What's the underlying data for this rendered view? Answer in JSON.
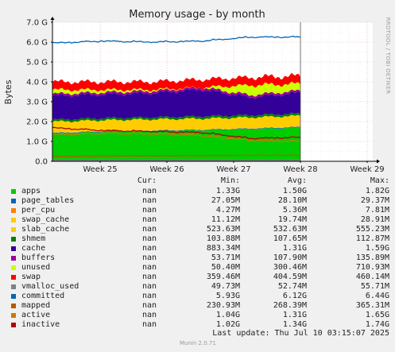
{
  "chart_data": {
    "type": "area",
    "title": "Memory usage - by month",
    "ylabel": "Bytes",
    "side_label": "RRDTOOL / TOBI OETIKER",
    "ylim": [
      0,
      7.0
    ],
    "y_unit": "G",
    "y_ticks": [
      "0.0",
      "1.0 G",
      "2.0 G",
      "3.0 G",
      "4.0 G",
      "5.0 G",
      "6.0 G",
      "7.0 G"
    ],
    "x_ticks": [
      "Week 25",
      "Week 26",
      "Week 27",
      "Week 28",
      "Week 29"
    ],
    "grid": true,
    "x": [
      "Week 24.4",
      "Week 25",
      "Week 26",
      "Week 27",
      "Week 27.5",
      "Week 28"
    ],
    "series": [
      {
        "name": "apps",
        "color": "#00cc00",
        "values": [
          1.4,
          1.48,
          1.52,
          1.56,
          1.62,
          1.7
        ]
      },
      {
        "name": "page_tables",
        "color": "#0066b3",
        "values": [
          0.03,
          0.03,
          0.03,
          0.03,
          0.03,
          0.03
        ]
      },
      {
        "name": "per_cpu",
        "color": "#ff8000",
        "values": [
          0.01,
          0.01,
          0.01,
          0.01,
          0.01,
          0.01
        ]
      },
      {
        "name": "swap_cache",
        "color": "#ffcc00",
        "values": [
          0.02,
          0.02,
          0.02,
          0.02,
          0.02,
          0.02
        ]
      },
      {
        "name": "slab_cache",
        "color": "#ffcc00",
        "values": [
          0.53,
          0.53,
          0.53,
          0.53,
          0.53,
          0.53
        ]
      },
      {
        "name": "shmem",
        "color": "#008000",
        "values": [
          0.1,
          0.1,
          0.1,
          0.11,
          0.11,
          0.11
        ]
      },
      {
        "name": "cache",
        "color": "#330099",
        "values": [
          1.2,
          1.2,
          1.22,
          1.35,
          0.9,
          1.05
        ]
      },
      {
        "name": "buffers",
        "color": "#990099",
        "values": [
          0.1,
          0.1,
          0.11,
          0.11,
          0.11,
          0.11
        ]
      },
      {
        "name": "unused",
        "color": "#ccff00",
        "values": [
          0.21,
          0.13,
          0.06,
          0.0,
          0.5,
          0.34
        ]
      },
      {
        "name": "swap",
        "color": "#ff0000",
        "values": [
          0.4,
          0.4,
          0.4,
          0.4,
          0.4,
          0.4
        ]
      }
    ],
    "line_series": [
      {
        "name": "committed",
        "color": "#0066b3",
        "values": [
          5.95,
          6.05,
          6.0,
          6.05,
          6.25,
          6.25
        ]
      },
      {
        "name": "active",
        "color": "#cc7a00",
        "values": [
          1.35,
          1.4,
          1.38,
          1.3,
          1.05,
          1.0
        ]
      },
      {
        "name": "inactive",
        "color": "#b30000",
        "values": [
          1.68,
          1.55,
          1.5,
          1.45,
          1.15,
          1.2
        ]
      },
      {
        "name": "vmalloc_used",
        "color": "#808080",
        "values": [
          0.05,
          0.05,
          0.05,
          0.05,
          0.05,
          0.05
        ]
      },
      {
        "name": "mapped",
        "color": "#b35a00",
        "values": [
          0.25,
          0.26,
          0.27,
          0.28,
          0.3,
          0.3
        ]
      }
    ]
  },
  "legend": {
    "headers": [
      "Cur:",
      "Min:",
      "Avg:",
      "Max:"
    ],
    "rows": [
      {
        "name": "apps",
        "color": "#00cc00",
        "cur": "nan",
        "min": "1.33G",
        "avg": "1.50G",
        "max": "1.82G"
      },
      {
        "name": "page_tables",
        "color": "#0066b3",
        "cur": "nan",
        "min": "27.05M",
        "avg": "28.10M",
        "max": "29.37M"
      },
      {
        "name": "per_cpu",
        "color": "#ff8000",
        "cur": "nan",
        "min": "4.27M",
        "avg": "5.36M",
        "max": "7.81M"
      },
      {
        "name": "swap_cache",
        "color": "#ffcc00",
        "cur": "nan",
        "min": "11.12M",
        "avg": "19.74M",
        "max": "28.91M"
      },
      {
        "name": "slab_cache",
        "color": "#ffcc00",
        "cur": "nan",
        "min": "523.63M",
        "avg": "532.63M",
        "max": "555.23M"
      },
      {
        "name": "shmem",
        "color": "#008000",
        "cur": "nan",
        "min": "103.88M",
        "avg": "107.65M",
        "max": "112.87M"
      },
      {
        "name": "cache",
        "color": "#330099",
        "cur": "nan",
        "min": "883.34M",
        "avg": "1.31G",
        "max": "1.59G"
      },
      {
        "name": "buffers",
        "color": "#990099",
        "cur": "nan",
        "min": "53.71M",
        "avg": "107.90M",
        "max": "135.89M"
      },
      {
        "name": "unused",
        "color": "#ccff00",
        "cur": "nan",
        "min": "50.40M",
        "avg": "300.46M",
        "max": "710.93M"
      },
      {
        "name": "swap",
        "color": "#ff0000",
        "cur": "nan",
        "min": "359.46M",
        "avg": "404.59M",
        "max": "460.14M"
      },
      {
        "name": "vmalloc_used",
        "color": "#808080",
        "cur": "nan",
        "min": "49.73M",
        "avg": "52.74M",
        "max": "55.71M"
      },
      {
        "name": "committed",
        "color": "#0066b3",
        "cur": "nan",
        "min": "5.93G",
        "avg": "6.12G",
        "max": "6.44G"
      },
      {
        "name": "mapped",
        "color": "#b35a00",
        "cur": "nan",
        "min": "230.93M",
        "avg": "268.39M",
        "max": "365.31M"
      },
      {
        "name": "active",
        "color": "#cc7a00",
        "cur": "nan",
        "min": "1.04G",
        "avg": "1.31G",
        "max": "1.65G"
      },
      {
        "name": "inactive",
        "color": "#b30000",
        "cur": "nan",
        "min": "1.02G",
        "avg": "1.34G",
        "max": "1.74G"
      }
    ]
  },
  "footer": {
    "last_update": "Last update: Thu Jul 10 03:15:07 2025",
    "generator": "Munin 2.0.71"
  }
}
